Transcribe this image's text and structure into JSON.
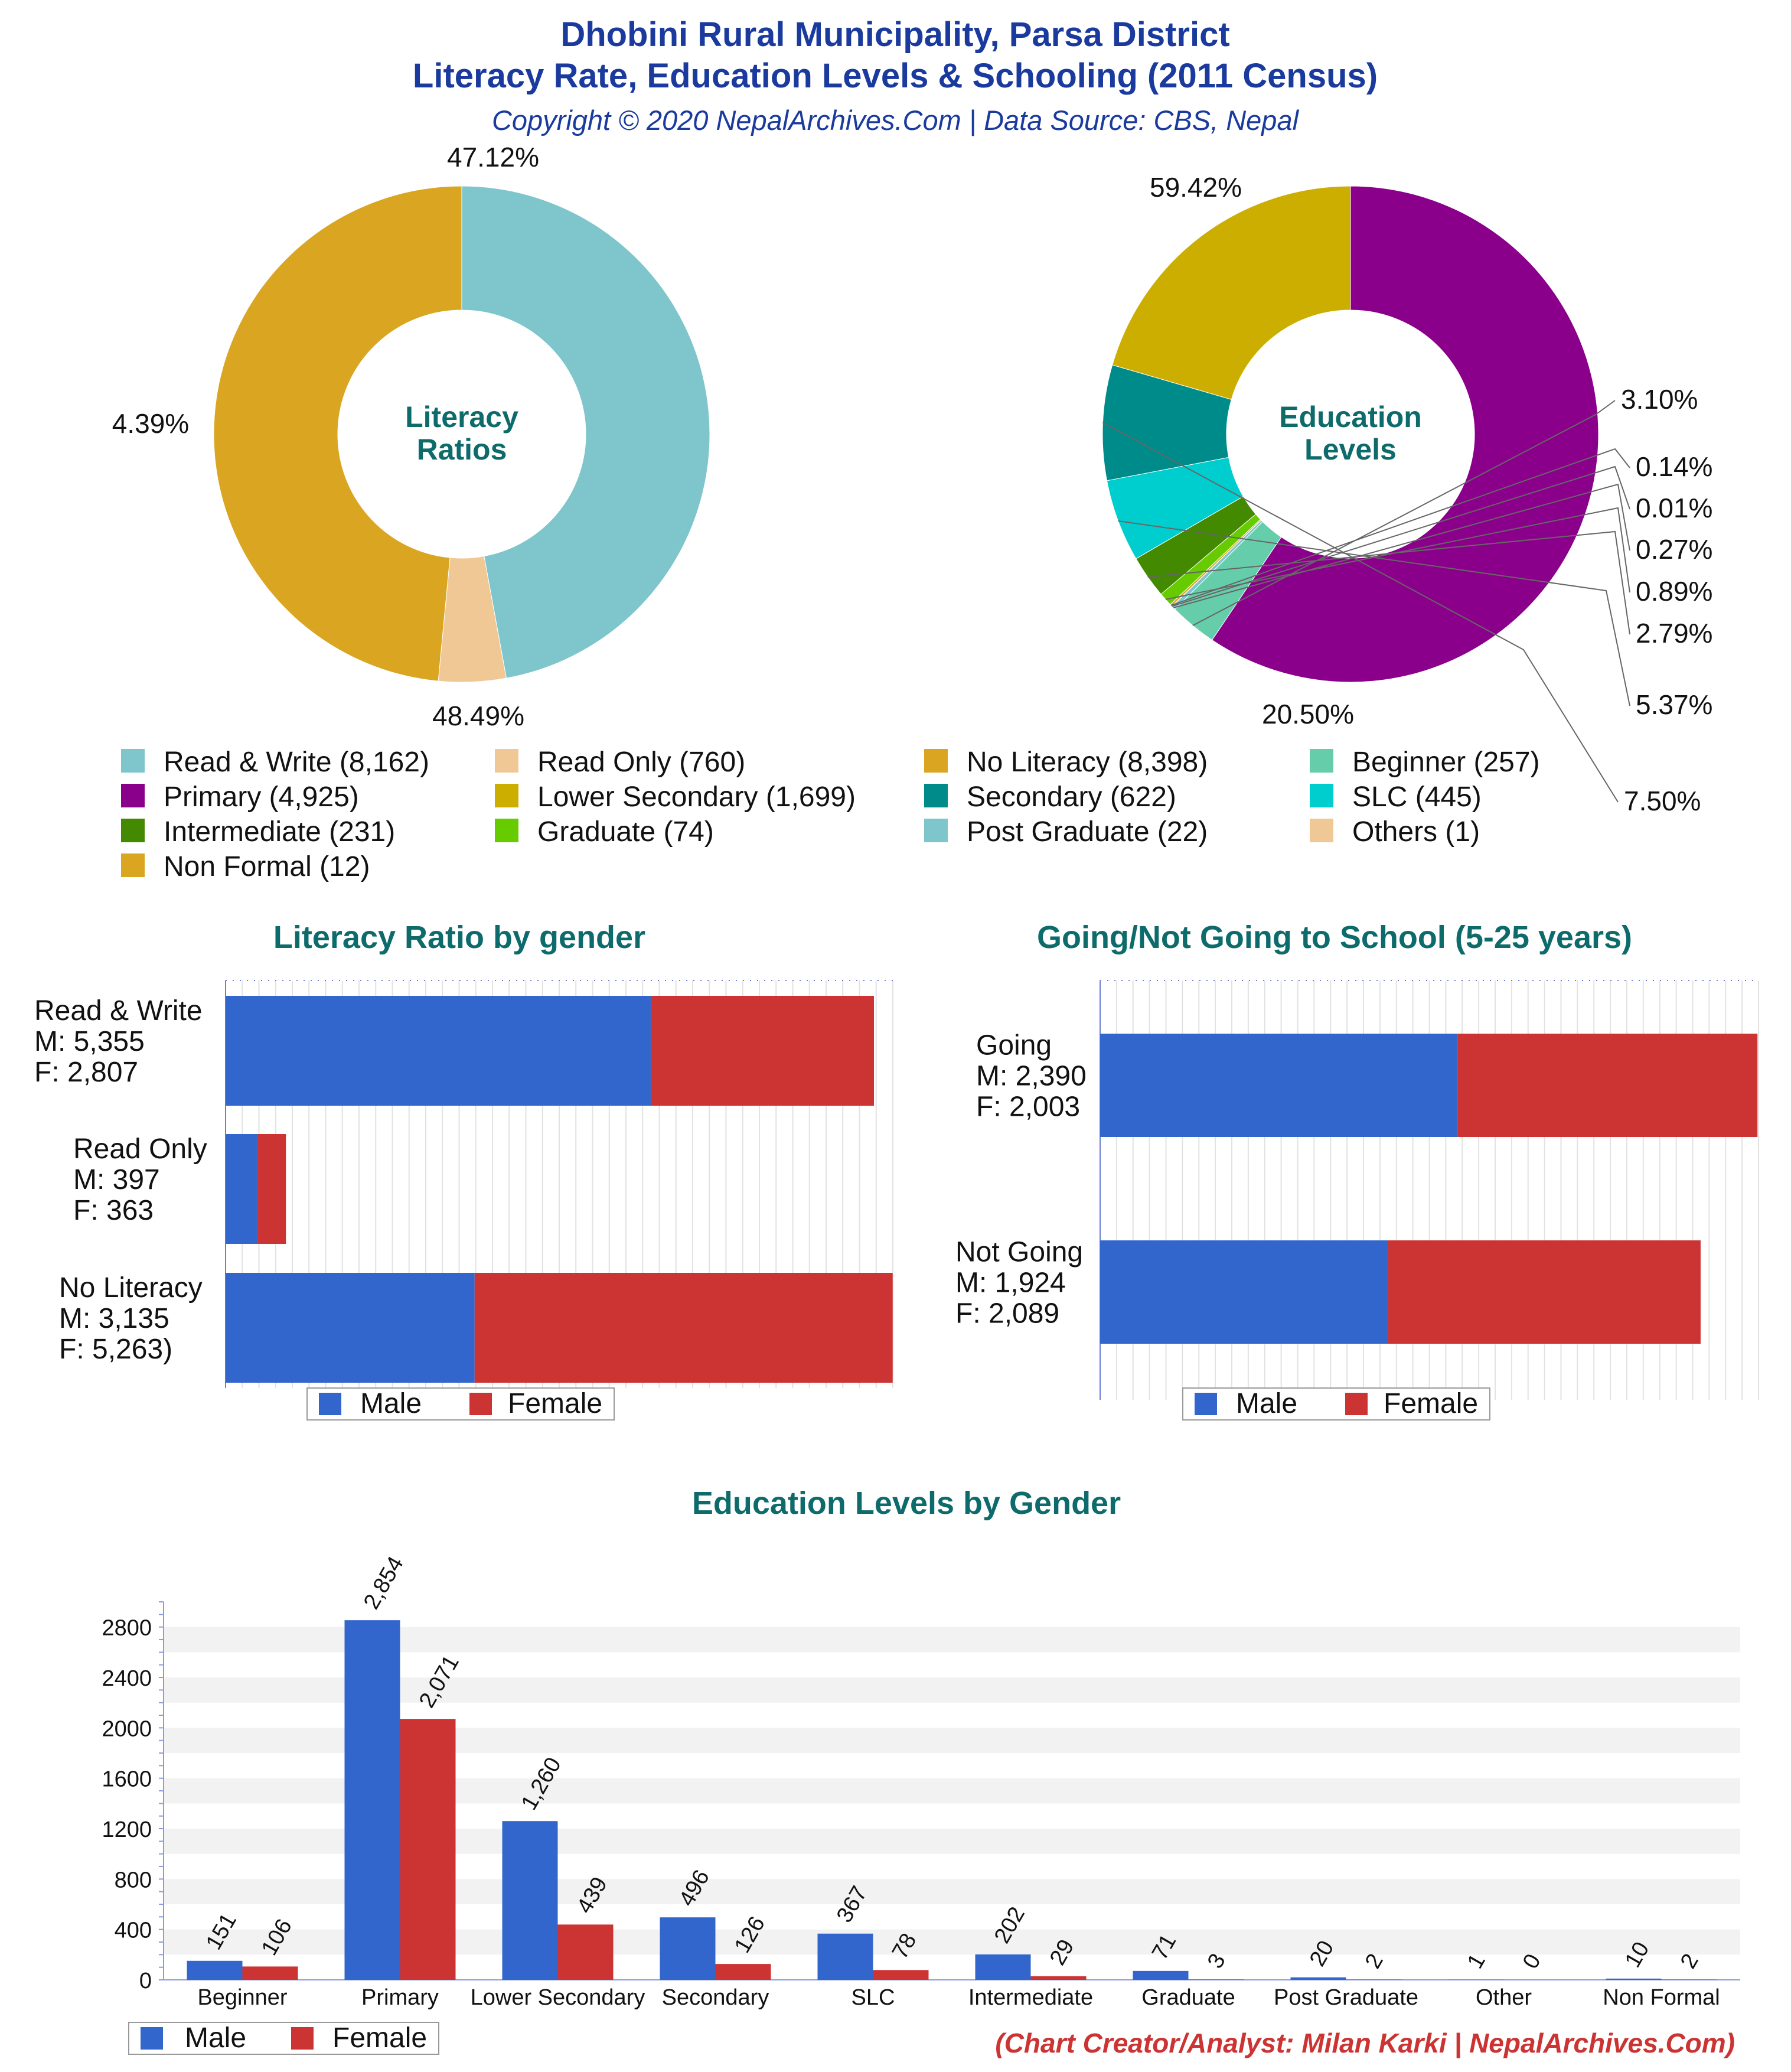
{
  "header": {
    "title_line1": "Dhobini Rural Municipality, Parsa District",
    "title_line2": "Literacy Rate, Education Levels & Schooling (2011 Census)",
    "subtitle": "Copyright © 2020 NepalArchives.Com | Data Source: CBS, Nepal"
  },
  "footer": {
    "credit": "(Chart Creator/Analyst: Milan Karki | NepalArchives.Com)"
  },
  "colors": {
    "title": "#1a3a9e",
    "chart_title": "#0e6b6b",
    "male": "#3366cc",
    "female": "#cc3333",
    "credit": "#cc3333"
  },
  "legend": {
    "male": "Male",
    "female": "Female"
  },
  "chart_data": [
    {
      "id": "literacy-donut",
      "type": "pie",
      "center_label": [
        "Literacy",
        "Ratios"
      ],
      "slices": [
        {
          "label": "Read & Write",
          "value": 8162,
          "percent": "47.12%",
          "color": "#7ec5cc"
        },
        {
          "label": "Read Only",
          "value": 760,
          "percent": "4.39%",
          "color": "#f0c896"
        },
        {
          "label": "No Literacy",
          "value": 8398,
          "percent": "48.49%",
          "color": "#daa520"
        }
      ]
    },
    {
      "id": "education-donut",
      "type": "pie",
      "center_label": [
        "Education",
        "Levels"
      ],
      "slices": [
        {
          "label": "Primary",
          "value": 4925,
          "percent": "59.42%",
          "color": "#8b008b"
        },
        {
          "label": "Beginner",
          "value": 257,
          "percent": "3.10%",
          "color": "#66cdaa"
        },
        {
          "label": "Post Graduate",
          "value": 22,
          "percent": "0.27%",
          "color": "#7ec5cc"
        },
        {
          "label": "Others",
          "value": 1,
          "percent": "0.01%",
          "color": "#f0c896"
        },
        {
          "label": "Non Formal",
          "value": 12,
          "percent": "0.14%",
          "color": "#daa520"
        },
        {
          "label": "Graduate",
          "value": 74,
          "percent": "0.89%",
          "color": "#66cc00"
        },
        {
          "label": "Intermediate",
          "value": 231,
          "percent": "2.79%",
          "color": "#438a00"
        },
        {
          "label": "SLC",
          "value": 445,
          "percent": "5.37%",
          "color": "#00cdcd"
        },
        {
          "label": "Secondary",
          "value": 622,
          "percent": "7.50%",
          "color": "#008b8b"
        },
        {
          "label": "Lower Secondary",
          "value": 1699,
          "percent": "20.50%",
          "color": "#ccae00"
        }
      ],
      "outside_labels": [
        "3.10%",
        "0.14%",
        "0.01%",
        "0.27%",
        "0.89%",
        "2.79%",
        "5.37%",
        "7.50%"
      ]
    },
    {
      "id": "literacy-by-gender",
      "type": "bar",
      "title": "Literacy Ratio by gender",
      "orientation": "horizontal",
      "stacked": true,
      "xlim": [
        0,
        8400
      ],
      "rows": [
        {
          "label": [
            "Read & Write",
            "M: 5,355",
            "F: 2,807"
          ],
          "male": 5355,
          "female": 2807
        },
        {
          "label": [
            "Read Only",
            "M: 397",
            "F: 363"
          ],
          "male": 397,
          "female": 363
        },
        {
          "label": [
            "No Literacy",
            "M: 3,135",
            "F: 5,263)"
          ],
          "male": 3135,
          "female": 5263
        }
      ]
    },
    {
      "id": "school-going",
      "type": "bar",
      "title": "Going/Not Going to School (5-25 years)",
      "orientation": "horizontal",
      "stacked": true,
      "xlim": [
        0,
        4400
      ],
      "rows": [
        {
          "label": [
            "Going",
            "M: 2,390",
            "F: 2,003"
          ],
          "male": 2390,
          "female": 2003
        },
        {
          "label": [
            "Not Going",
            "M: 1,924",
            "F: 2,089"
          ],
          "male": 1924,
          "female": 2089
        }
      ]
    },
    {
      "id": "education-by-gender",
      "type": "bar",
      "title": "Education Levels by Gender",
      "ylim": [
        0,
        3000
      ],
      "yticks": [
        "0",
        "400",
        "800",
        "1200",
        "1600",
        "2000",
        "2400",
        "2800"
      ],
      "categories": [
        "Beginner",
        "Primary",
        "Lower Secondary",
        "Secondary",
        "SLC",
        "Intermediate",
        "Graduate",
        "Post Graduate",
        "Other",
        "Non Formal"
      ],
      "series": [
        {
          "name": "Male",
          "values": [
            151,
            2854,
            1260,
            496,
            367,
            202,
            71,
            20,
            1,
            10
          ],
          "labels": [
            "151",
            "2,854",
            "1,260",
            "496",
            "367",
            "202",
            "71",
            "20",
            "1",
            "10"
          ]
        },
        {
          "name": "Female",
          "values": [
            106,
            2071,
            439,
            126,
            78,
            29,
            3,
            2,
            0,
            2
          ],
          "labels": [
            "106",
            "2,071",
            "439",
            "126",
            "78",
            "29",
            "3",
            "2",
            "0",
            "2"
          ]
        }
      ]
    }
  ],
  "pie_legend": [
    {
      "text": "Read & Write (8,162)",
      "color": "#7ec5cc"
    },
    {
      "text": "Read Only (760)",
      "color": "#f0c896"
    },
    {
      "text": "No Literacy (8,398)",
      "color": "#daa520"
    },
    {
      "text": "Beginner (257)",
      "color": "#66cdaa"
    },
    {
      "text": "Primary (4,925)",
      "color": "#8b008b"
    },
    {
      "text": "Lower Secondary (1,699)",
      "color": "#ccae00"
    },
    {
      "text": "Secondary (622)",
      "color": "#008b8b"
    },
    {
      "text": "SLC (445)",
      "color": "#00cdcd"
    },
    {
      "text": "Intermediate (231)",
      "color": "#438a00"
    },
    {
      "text": "Graduate (74)",
      "color": "#66cc00"
    },
    {
      "text": "Post Graduate (22)",
      "color": "#7ec5cc"
    },
    {
      "text": "Others (1)",
      "color": "#f0c896"
    },
    {
      "text": "Non Formal (12)",
      "color": "#daa520"
    }
  ]
}
